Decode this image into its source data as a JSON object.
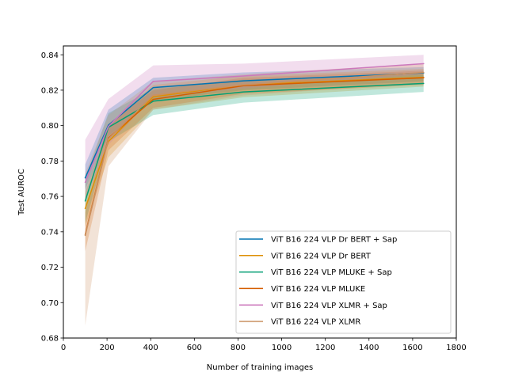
{
  "chart_data": {
    "type": "line",
    "title": "",
    "xlabel": "Number of training images",
    "ylabel": "Test AUROC",
    "xlim": [
      0,
      1800
    ],
    "ylim": [
      0.68,
      0.845
    ],
    "xticks": [
      0,
      200,
      400,
      600,
      800,
      1000,
      1200,
      1400,
      1600,
      1800
    ],
    "yticks": [
      0.68,
      0.7,
      0.72,
      0.74,
      0.76,
      0.78,
      0.8,
      0.82,
      0.84
    ],
    "ytick_labels": [
      "0.68",
      "0.70",
      "0.72",
      "0.74",
      "0.76",
      "0.78",
      "0.80",
      "0.82",
      "0.84"
    ],
    "grid": false,
    "legend_position": "lower-right",
    "x": [
      100,
      206,
      412,
      825,
      1650
    ],
    "series": [
      {
        "name": "ViT B16 224 VLP Dr BERT + Sap",
        "color": "#0173b2",
        "values": [
          0.7705,
          0.8002,
          0.8215,
          0.8253,
          0.8297
        ],
        "lower": [
          0.764,
          0.794,
          0.814,
          0.82,
          0.825
        ],
        "upper": [
          0.778,
          0.809,
          0.827,
          0.83,
          0.833
        ]
      },
      {
        "name": "ViT B16 224 VLP Dr BERT",
        "color": "#de8f05",
        "values": [
          0.7532,
          0.791,
          0.8163,
          0.823,
          0.8273
        ],
        "lower": [
          0.743,
          0.782,
          0.809,
          0.816,
          0.822
        ],
        "upper": [
          0.762,
          0.8,
          0.823,
          0.828,
          0.832
        ]
      },
      {
        "name": "ViT B16 224 VLP MLUKE + Sap",
        "color": "#029e73",
        "values": [
          0.7575,
          0.799,
          0.8138,
          0.819,
          0.8238
        ],
        "lower": [
          0.745,
          0.791,
          0.806,
          0.813,
          0.819
        ],
        "upper": [
          0.77,
          0.807,
          0.821,
          0.826,
          0.829
        ]
      },
      {
        "name": "ViT B16 224 VLP MLUKE",
        "color": "#d55e00",
        "values": [
          0.7385,
          0.793,
          0.8148,
          0.8225,
          0.827
        ],
        "lower": [
          0.729,
          0.786,
          0.81,
          0.818,
          0.823
        ],
        "upper": [
          0.751,
          0.801,
          0.82,
          0.827,
          0.831
        ]
      },
      {
        "name": "ViT B16 224 VLP XLMR + Sap",
        "color": "#cc78bc",
        "values": [
          0.768,
          0.7995,
          0.825,
          0.828,
          0.835
        ],
        "lower": [
          0.758,
          0.789,
          0.816,
          0.821,
          0.829
        ],
        "upper": [
          0.792,
          0.815,
          0.834,
          0.835,
          0.84
        ]
      },
      {
        "name": "ViT B16 224 VLP XLMR",
        "color": "#ca9161",
        "values": [
          0.738,
          0.7925,
          0.8172,
          0.823,
          0.83
        ],
        "lower": [
          0.687,
          0.777,
          0.809,
          0.817,
          0.824
        ],
        "upper": [
          0.773,
          0.806,
          0.825,
          0.829,
          0.835
        ]
      }
    ]
  }
}
